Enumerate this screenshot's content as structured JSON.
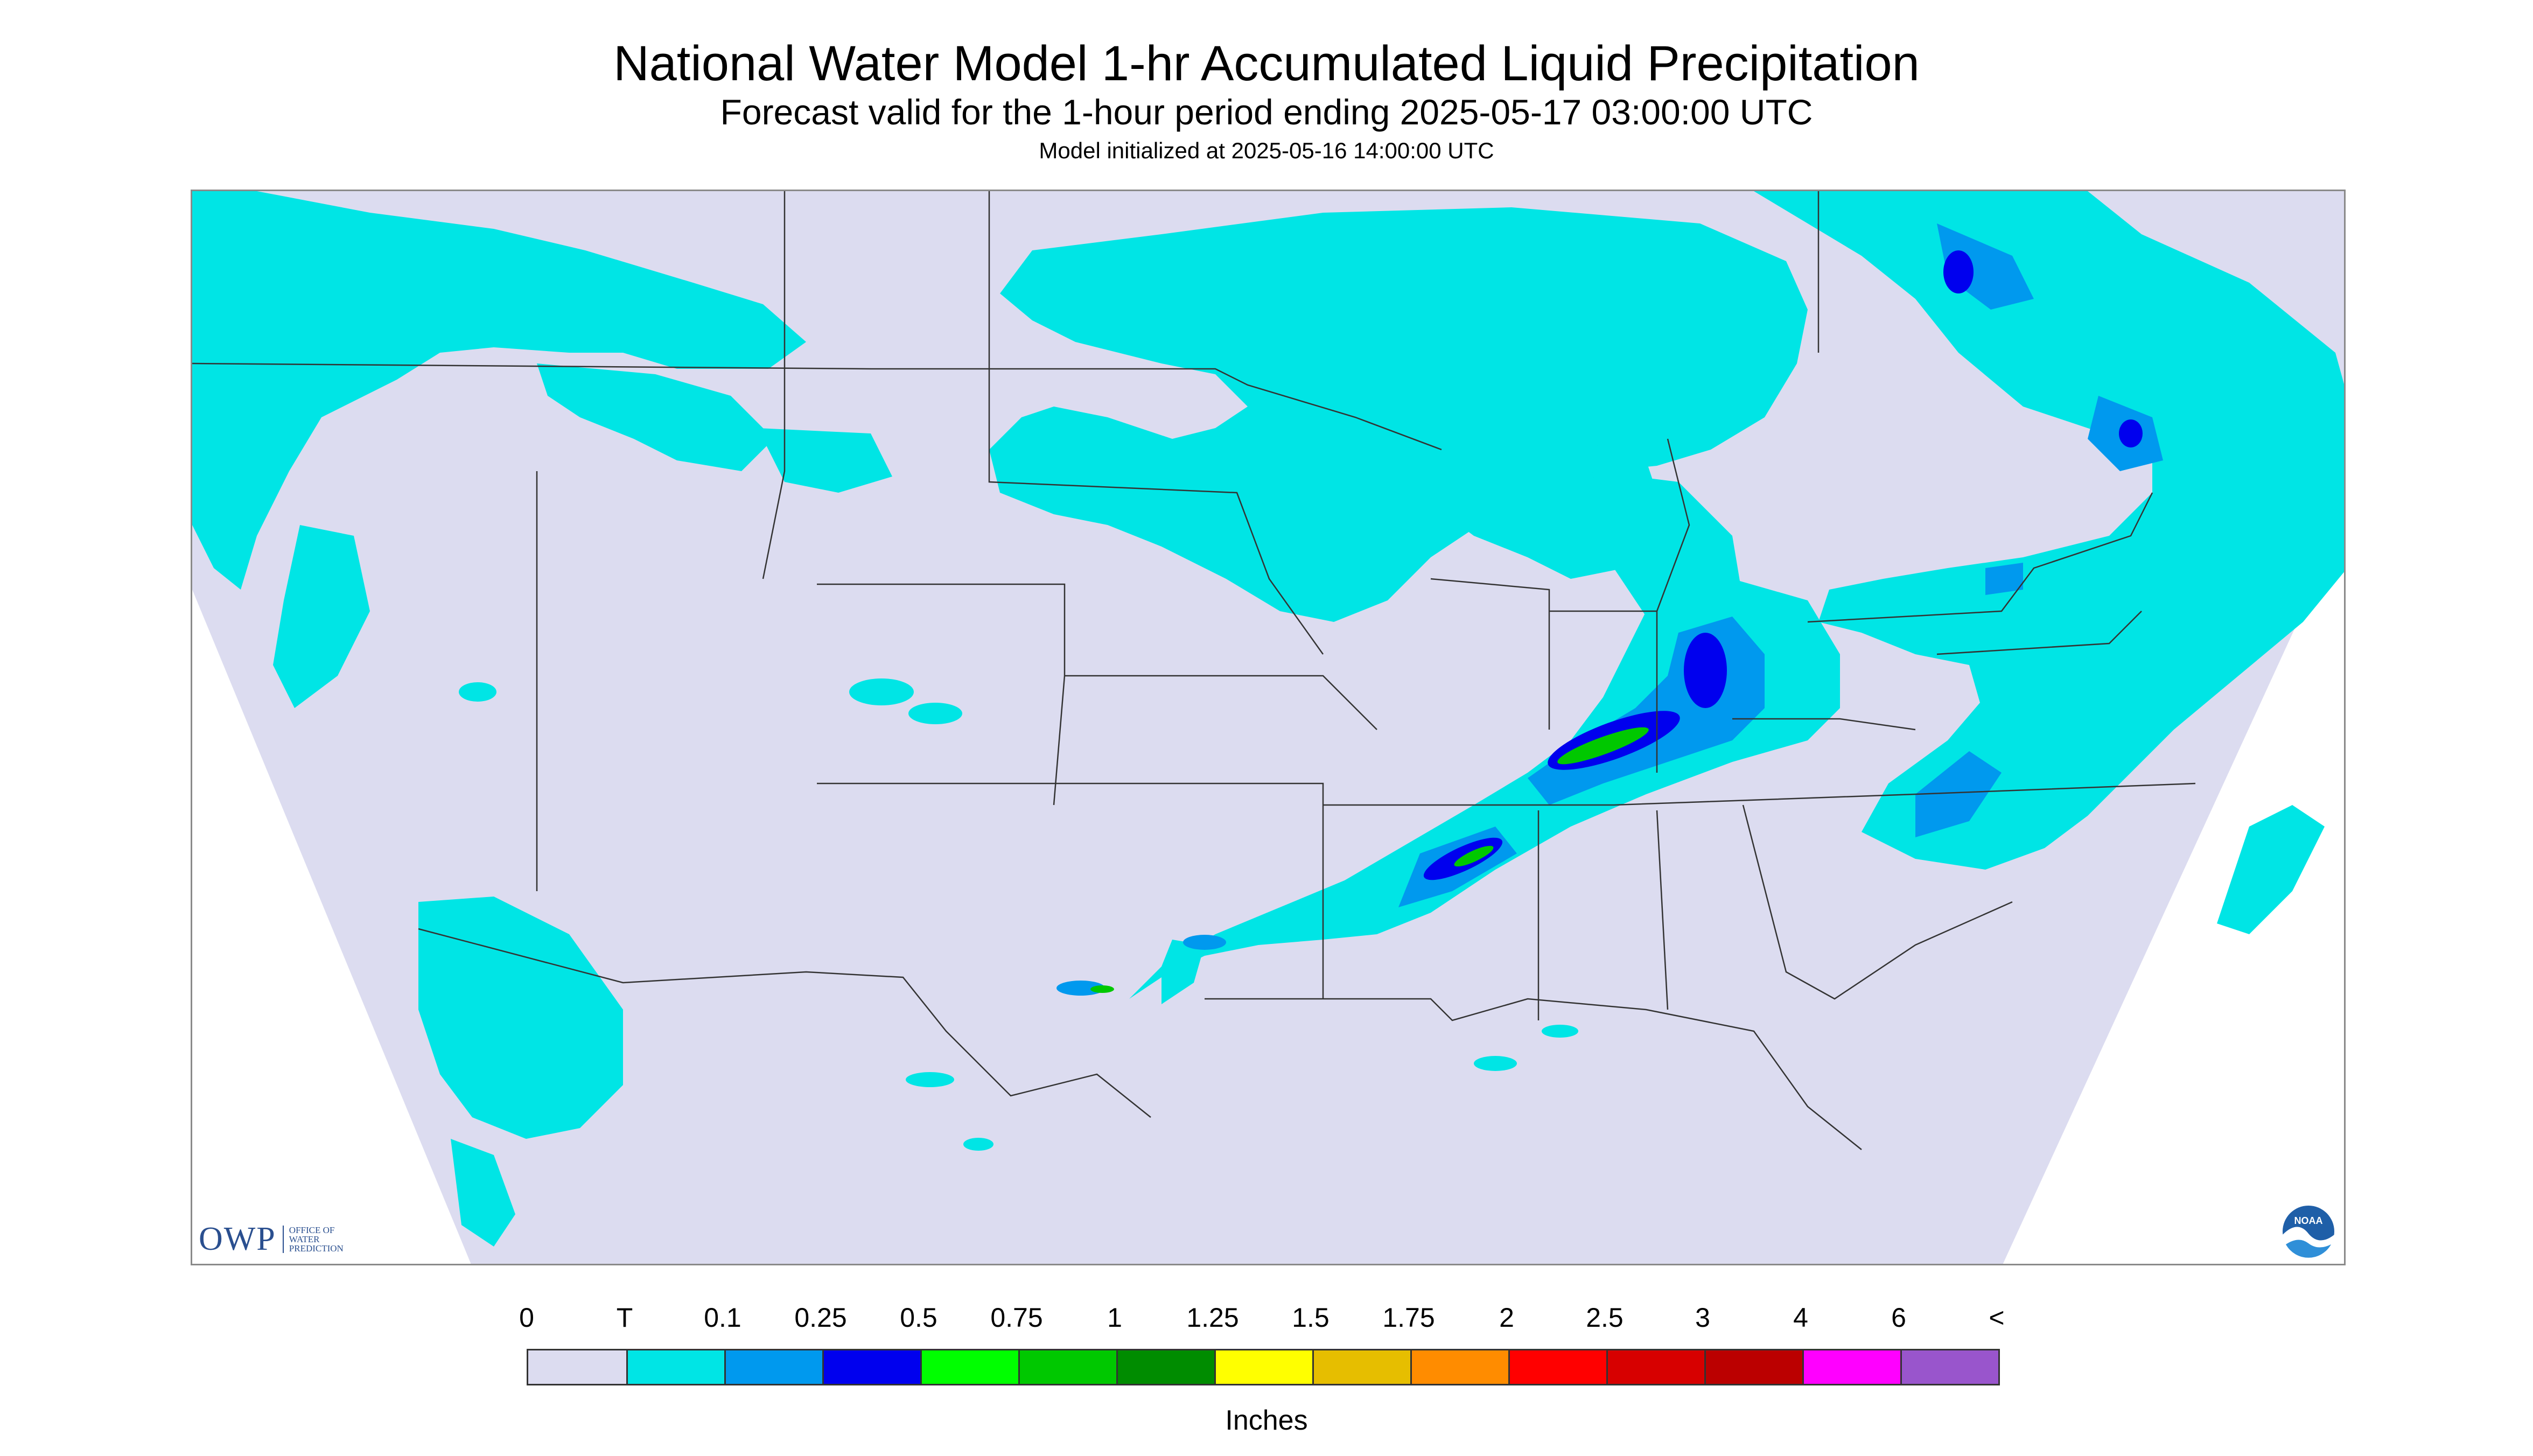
{
  "header": {
    "title": "National Water Model 1-hr Accumulated Liquid Precipitation",
    "subtitle": "Forecast valid for the 1-hour period ending 2025-05-17 03:00:00 UTC",
    "init_text": "Model initialized at 2025-05-16 14:00:00 UTC"
  },
  "logos": {
    "owp_mark": "OWP",
    "owp_sub": "Office of Water Prediction",
    "noaa_mark": "NOAA"
  },
  "legend": {
    "labels": [
      "0",
      "T",
      "0.1",
      "0.25",
      "0.5",
      "0.75",
      "1",
      "1.25",
      "1.5",
      "1.75",
      "2",
      "2.5",
      "3",
      "4",
      "6",
      "<"
    ],
    "colors": [
      "#dcdcf0",
      "#00e5e5",
      "#0099ee",
      "#0000ee",
      "#00ff00",
      "#00c800",
      "#008c00",
      "#ffff00",
      "#e6be00",
      "#ff8c00",
      "#ff0000",
      "#d70000",
      "#bb0000",
      "#ff00ff",
      "#9955cc"
    ],
    "units": "Inches"
  },
  "map": {
    "region": "Contiguous United States",
    "background_color": "#dcdcf0",
    "precip_light_color": "#00e5e5",
    "precip_heavy_areas": [
      "Ohio Valley / Kentucky",
      "Mid-Atlantic coast",
      "Lower Mississippi Valley",
      "Northern New England"
    ]
  }
}
